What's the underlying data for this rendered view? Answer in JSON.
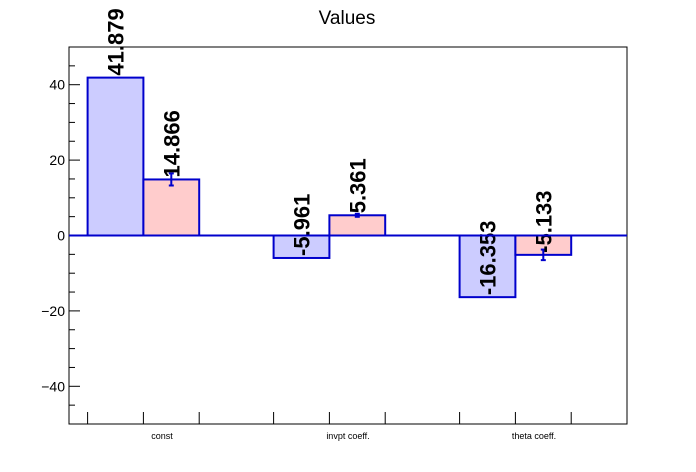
{
  "chart_data": {
    "type": "bar",
    "title": "Values",
    "xlabel": "",
    "ylabel": "",
    "categories": [
      "const",
      "invpt coeff.",
      "theta coeff."
    ],
    "ylim": [
      -50,
      50
    ],
    "y_ticks": [
      -40,
      -20,
      0,
      20,
      40
    ],
    "y_tick_labels": [
      "−40",
      "−20",
      "0",
      "20",
      "40"
    ],
    "grid": false,
    "legend": "none",
    "series": [
      {
        "values": [
          41.879,
          -5.961,
          -16.353
        ],
        "labels": [
          "41.879",
          "-5.961",
          "-16.353"
        ],
        "fill": "#ccccff",
        "stroke": "#0000cc"
      },
      {
        "values": [
          14.866,
          5.361,
          -5.133
        ],
        "labels": [
          "14.866",
          "5.361",
          "-5.133"
        ],
        "errors": [
          1.6,
          0.4,
          1.4
        ],
        "fill": "#ffcccc",
        "stroke": "#0000cc"
      }
    ],
    "zero_line_color": "#0000cc"
  }
}
